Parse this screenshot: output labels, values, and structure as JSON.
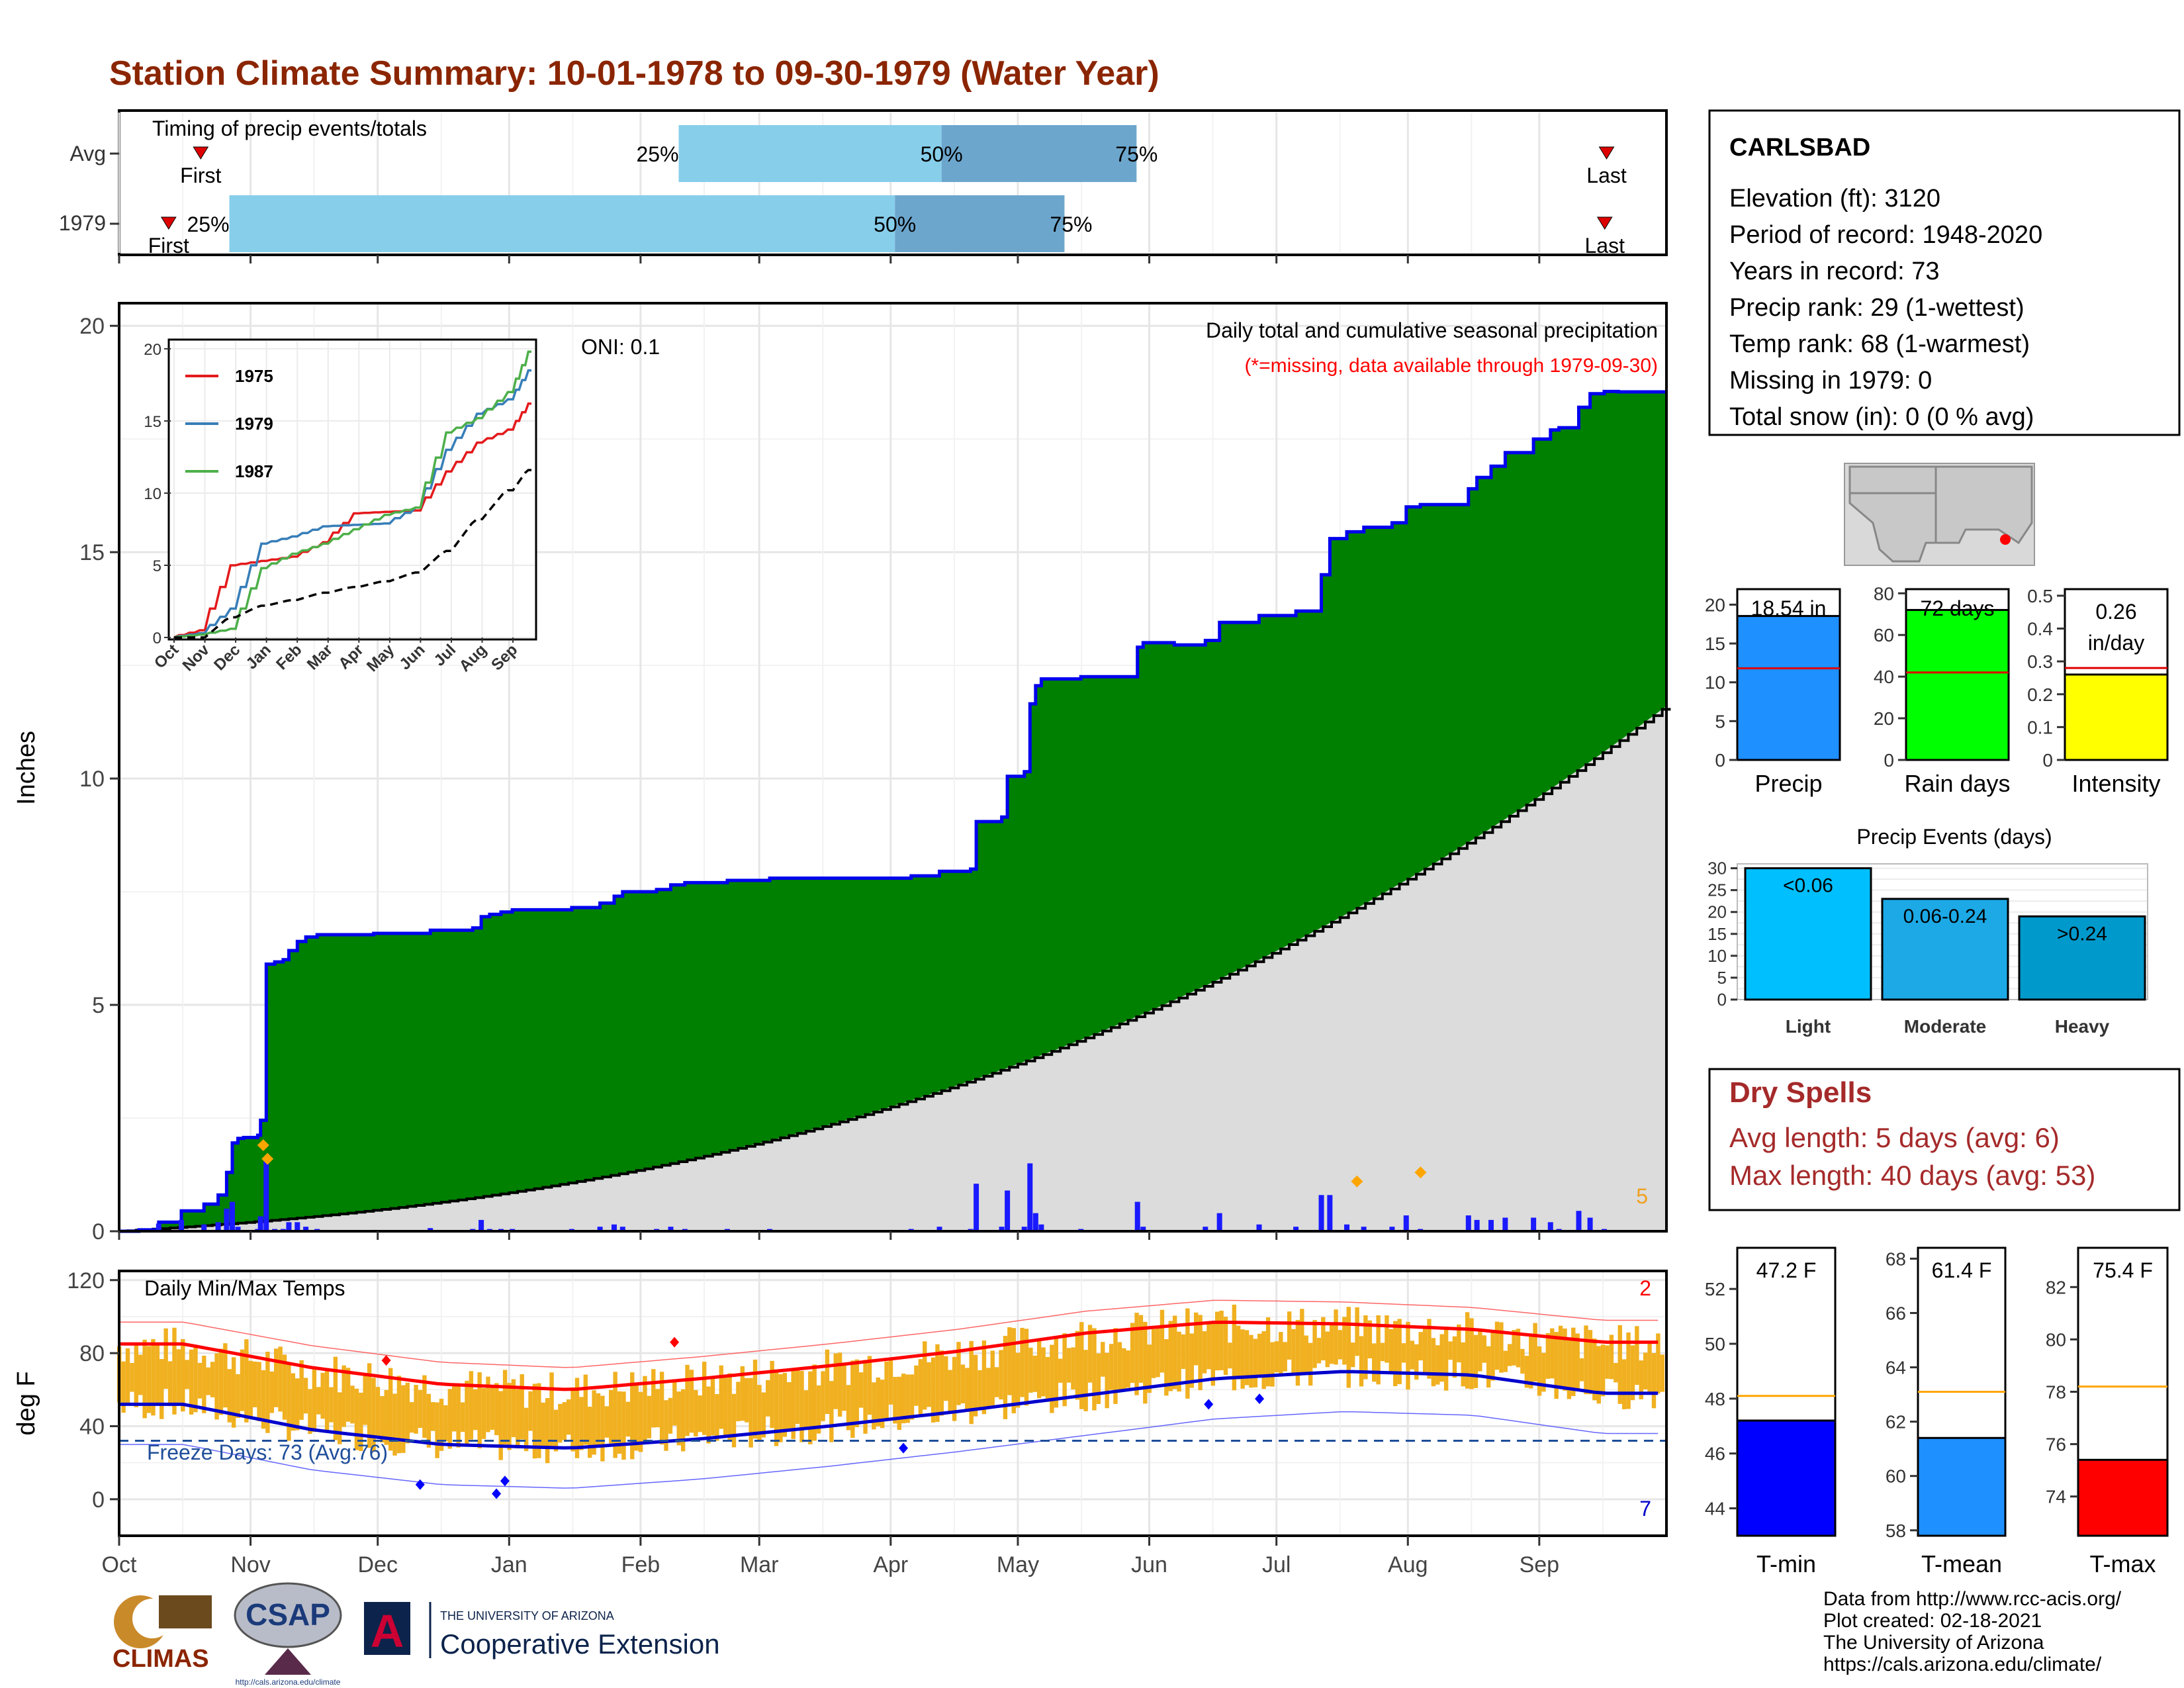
{
  "title": "Station Climate Summary: 10-01-1978 to 09-30-1979 (Water Year)",
  "colors": {
    "title": "#8B2500",
    "green": "#008000",
    "blue_line": "#0000ee",
    "avg_fill": "#dcdcdc",
    "brown": "#8B5A10",
    "bar_blue": "#1a1aff",
    "light_blue": "#87ceeb",
    "mid_blue": "#6ca6cd",
    "orange": "#f0b020",
    "red": "#ff0000",
    "dry_red": "#a52a2a"
  },
  "timing": {
    "label": "Timing of precip events/totals",
    "rows": [
      {
        "name": "Avg",
        "first_doy": 13,
        "last_doy": 354,
        "p25": 132,
        "p50": 194,
        "p75": 240,
        "first_label": "First",
        "last_label": "Last",
        "p25_label": "25%",
        "p50_label": "50%",
        "p75_label": "75%"
      },
      {
        "name": "1979",
        "first_doy": 7,
        "last_doy": 352,
        "p25": 26,
        "p50": 183,
        "p75": 223,
        "first_label": "First",
        "last_label": "Last",
        "p25_label": "25%",
        "p50_label": "50%",
        "p75_label": "75%"
      }
    ]
  },
  "precip_panel": {
    "ylabel": "Inches",
    "ylim": [
      0,
      20
    ],
    "yticks": [
      0,
      5,
      10,
      15,
      20
    ],
    "oni": "ONI: 0.1",
    "annot_title": "Daily total and cumulative seasonal precipitation",
    "annot_sub": "(*=missing, data available through 1979-09-30)",
    "corner_count": "5"
  },
  "inset": {
    "yticks": [
      0,
      5,
      10,
      15,
      20
    ],
    "months": [
      "Oct",
      "Nov",
      "Dec",
      "Jan",
      "Feb",
      "Mar",
      "Apr",
      "May",
      "Jun",
      "Jul",
      "Aug",
      "Sep"
    ],
    "legend": [
      {
        "name": "1975",
        "color": "#e41a1c"
      },
      {
        "name": "1979",
        "color": "#377eb8"
      },
      {
        "name": "1987",
        "color": "#4daf4a"
      }
    ]
  },
  "temp_panel": {
    "ylabel": "deg F",
    "ylim": [
      -20,
      120
    ],
    "yticks": [
      0,
      40,
      80,
      120
    ],
    "label": "Daily Min/Max Temps",
    "freeze_text": "Freeze Days: 73 (Avg:76)",
    "freeze_line": 32,
    "top_count": "2",
    "bottom_count": "7"
  },
  "months": [
    "Oct",
    "Nov",
    "Dec",
    "Jan",
    "Feb",
    "Mar",
    "Apr",
    "May",
    "Jun",
    "Jul",
    "Aug",
    "Sep"
  ],
  "station": {
    "name": "CARLSBAD",
    "lines": [
      "Elevation (ft): 3120",
      "Period of record: 1948-2020",
      "Years in record: 73",
      "Precip rank: 29 (1-wettest)",
      "Temp rank: 68 (1-warmest)",
      "Missing in 1979: 0",
      "Total snow (in): 0 (0 % avg)"
    ]
  },
  "summary_bars": [
    {
      "label": "Precip",
      "value": 18.54,
      "value_text": "18.54 in",
      "avg": 11.8,
      "ylim": [
        0,
        22
      ],
      "yticks": [
        0,
        5,
        10,
        15,
        20
      ],
      "color": "#1e90ff"
    },
    {
      "label": "Rain days",
      "value": 72,
      "value_text": "72 days",
      "avg": 42,
      "ylim": [
        0,
        82
      ],
      "yticks": [
        0,
        20,
        40,
        60,
        80
      ],
      "color": "#00ff00"
    },
    {
      "label": "Intensity",
      "value": 0.26,
      "value_text": "0.26",
      "value_text2": "in/day",
      "avg": 0.28,
      "ylim": [
        0,
        0.52
      ],
      "yticks": [
        0.0,
        0.1,
        0.2,
        0.3,
        0.4,
        0.5
      ],
      "color": "#ffff00"
    }
  ],
  "events": {
    "title": "Precip Events (days)",
    "ylim": [
      0,
      31
    ],
    "yticks": [
      0,
      5,
      10,
      15,
      20,
      25,
      30
    ],
    "bars": [
      {
        "label": "Light",
        "range": "<0.06",
        "value": 30,
        "color": "#00bfff"
      },
      {
        "label": "Moderate",
        "range": "0.06-0.24",
        "value": 23,
        "color": "#1ca9e6"
      },
      {
        "label": "Heavy",
        "range": ">0.24",
        "value": 19,
        "color": "#0099cc"
      }
    ]
  },
  "dry_spells": {
    "title": "Dry Spells",
    "avg_line": "Avg length: 5 days (avg: 6)",
    "max_line": "Max length: 40 days (avg: 53)"
  },
  "temp_bars": [
    {
      "label": "T-min",
      "value": 47.2,
      "value_text": "47.2 F",
      "avg": 48.1,
      "ylim": [
        43,
        53.5
      ],
      "yticks": [
        44,
        46,
        48,
        50,
        52
      ],
      "color": "#0000ff"
    },
    {
      "label": "T-mean",
      "value": 61.4,
      "value_text": "61.4 F",
      "avg": 63.1,
      "ylim": [
        57.8,
        68.4
      ],
      "yticks": [
        58,
        60,
        62,
        64,
        66,
        68
      ],
      "color": "#1e90ff"
    },
    {
      "label": "T-max",
      "value": 75.4,
      "value_text": "75.4 F",
      "avg": 78.2,
      "ylim": [
        72.5,
        83.5
      ],
      "yticks": [
        74,
        76,
        78,
        80,
        82
      ],
      "color": "#ff0000"
    }
  ],
  "footer": {
    "logos": {
      "climas": "CLIMAS",
      "csap": "CSAP",
      "csap_url": "http://cals.arizona.edu/climate",
      "ua_line1": "THE UNIVERSITY OF ARIZONA",
      "ua_line2": "Cooperative Extension"
    },
    "credits": [
      "Data from http://www.rcc-acis.org/",
      "Plot created: 02-18-2021",
      "The University of Arizona",
      "https://cals.arizona.edu/climate/"
    ]
  },
  "chart_data": [
    {
      "type": "area",
      "title": "Daily total and cumulative seasonal precipitation",
      "ylabel": "Inches",
      "ylim": [
        0,
        20
      ],
      "x_units": "day of water year (0 = Oct 1)",
      "cumulative_1979": [
        [
          0,
          0
        ],
        [
          7,
          0.03
        ],
        [
          14,
          0.2
        ],
        [
          22,
          0.45
        ],
        [
          30,
          0.6
        ],
        [
          35,
          0.8
        ],
        [
          38,
          1.3
        ],
        [
          40,
          1.95
        ],
        [
          42,
          2.05
        ],
        [
          44,
          2.07
        ],
        [
          49,
          2.12
        ],
        [
          50,
          2.45
        ],
        [
          52,
          5.9
        ],
        [
          55,
          5.95
        ],
        [
          58,
          6.0
        ],
        [
          60,
          6.2
        ],
        [
          63,
          6.4
        ],
        [
          66,
          6.5
        ],
        [
          70,
          6.55
        ],
        [
          90,
          6.58
        ],
        [
          110,
          6.65
        ],
        [
          125,
          6.7
        ],
        [
          128,
          6.95
        ],
        [
          131,
          7.0
        ],
        [
          135,
          7.05
        ],
        [
          139,
          7.1
        ],
        [
          160,
          7.15
        ],
        [
          170,
          7.25
        ],
        [
          175,
          7.4
        ],
        [
          178,
          7.5
        ],
        [
          190,
          7.55
        ],
        [
          195,
          7.65
        ],
        [
          200,
          7.7
        ],
        [
          215,
          7.75
        ],
        [
          230,
          7.8
        ],
        [
          280,
          7.85
        ],
        [
          290,
          7.95
        ],
        [
          301,
          8.0
        ],
        [
          303,
          9.05
        ],
        [
          312,
          9.15
        ],
        [
          314,
          10.05
        ],
        [
          320,
          10.15
        ],
        [
          322,
          11.65
        ],
        [
          324,
          12.05
        ],
        [
          326,
          12.2
        ],
        [
          340,
          12.25
        ],
        [
          360,
          12.9
        ],
        [
          362,
          13.0
        ],
        [
          373,
          12.95
        ],
        [
          384,
          13.05
        ],
        [
          389,
          13.45
        ],
        [
          403,
          13.6
        ],
        [
          416,
          13.7
        ],
        [
          425,
          14.5
        ],
        [
          428,
          15.3
        ],
        [
          434,
          15.45
        ],
        [
          440,
          15.55
        ],
        [
          447,
          15.55
        ],
        [
          450,
          15.65
        ],
        [
          455,
          16.0
        ],
        [
          460,
          16.05
        ],
        [
          477,
          16.4
        ],
        [
          480,
          16.65
        ],
        [
          485,
          16.9
        ],
        [
          490,
          17.2
        ],
        [
          500,
          17.5
        ],
        [
          506,
          17.7
        ],
        [
          509,
          17.75
        ],
        [
          516,
          18.2
        ],
        [
          520,
          18.5
        ],
        [
          525,
          18.55
        ],
        [
          530,
          18.54
        ],
        [
          547,
          18.54
        ]
      ],
      "cumulative_avg_endpoint": 11.6,
      "daily_bars_note": "blue bars, largest ~1.5 in late May/June"
    },
    {
      "type": "line",
      "title": "Daily Min/Max Temps",
      "ylabel": "deg F",
      "ylim": [
        -20,
        120
      ],
      "series": [
        {
          "name": "avg max",
          "values_by_month": [
            85,
            72,
            63,
            60,
            66,
            73,
            81,
            91,
            97,
            96,
            93,
            86
          ]
        },
        {
          "name": "avg min",
          "values_by_month": [
            52,
            38,
            30,
            28,
            33,
            40,
            48,
            57,
            66,
            70,
            68,
            58
          ]
        }
      ]
    },
    {
      "type": "line",
      "title": "",
      "x": [
        "Oct",
        "Nov",
        "Dec",
        "Jan",
        "Feb",
        "Mar",
        "Apr",
        "May",
        "Jun",
        "Jul",
        "Aug",
        "Sep"
      ],
      "ylim": [
        0,
        20
      ],
      "series": [
        {
          "name": "1975",
          "values": [
            0.5,
            5.0,
            5.3,
            5.6,
            6.6,
            8.6,
            8.7,
            8.8,
            11.5,
            13.5,
            14.4,
            16.2
          ]
        },
        {
          "name": "1979",
          "values": [
            0.3,
            2.0,
            6.5,
            7.0,
            7.7,
            7.8,
            7.9,
            9.0,
            13.0,
            15.5,
            16.5,
            18.5
          ]
        },
        {
          "name": "1987",
          "values": [
            0.2,
            0.6,
            4.8,
            5.8,
            6.5,
            7.5,
            8.5,
            9.0,
            14.2,
            15.2,
            17.0,
            19.8
          ]
        },
        {
          "name": "average",
          "values": [
            0.0,
            1.4,
            2.2,
            2.6,
            3.1,
            3.5,
            3.9,
            4.5,
            6.0,
            8.2,
            10.2,
            11.6
          ]
        }
      ]
    }
  ]
}
